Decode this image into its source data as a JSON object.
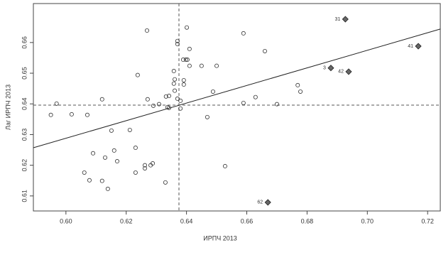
{
  "chart_data": {
    "type": "scatter",
    "x_label": "ИРПЧ 2013",
    "y_label": "Лаг ИРПЧ 2013",
    "xlim": [
      0.5892,
      0.7242
    ],
    "ylim": [
      0.6051,
      0.6727
    ],
    "xticks": [
      {
        "value": 0.6,
        "label": "0.60"
      },
      {
        "value": 0.62,
        "label": "0.62"
      },
      {
        "value": 0.64,
        "label": "0.64"
      },
      {
        "value": 0.66,
        "label": "0.66"
      },
      {
        "value": 0.68,
        "label": "0.68"
      },
      {
        "value": 0.7,
        "label": "0.70"
      },
      {
        "value": 0.72,
        "label": "0.72"
      }
    ],
    "yticks": [
      0.61,
      0.62,
      0.63,
      0.64,
      0.65,
      0.66
    ],
    "x": [
      0.595,
      0.5969,
      0.6019,
      0.6071,
      0.609,
      0.612,
      0.6151,
      0.616,
      0.617,
      0.612,
      0.613,
      0.6139,
      0.6078,
      0.6061,
      0.6231,
      0.6231,
      0.6262,
      0.6262,
      0.6281,
      0.6288,
      0.633,
      0.6309,
      0.629,
      0.6271,
      0.6332,
      0.6342,
      0.6342,
      0.6337,
      0.637,
      0.638,
      0.638,
      0.6361,
      0.6361,
      0.6358,
      0.6358,
      0.637,
      0.637,
      0.6401,
      0.6398,
      0.6389,
      0.6403,
      0.6391,
      0.6391,
      0.641,
      0.641,
      0.645,
      0.65,
      0.6488,
      0.6469,
      0.6528,
      0.6589,
      0.6589,
      0.6629,
      0.666,
      0.67,
      0.6769,
      0.6778,
      0.6269,
      0.6238,
      0.6212
    ],
    "y": [
      0.6364,
      0.6401,
      0.6366,
      0.6364,
      0.6239,
      0.6415,
      0.6313,
      0.6248,
      0.6213,
      0.6149,
      0.6225,
      0.6123,
      0.6151,
      0.6176,
      0.6257,
      0.6176,
      0.62,
      0.619,
      0.62,
      0.6206,
      0.6144,
      0.6399,
      0.6394,
      0.6415,
      0.6424,
      0.6426,
      0.6387,
      0.6389,
      0.6417,
      0.641,
      0.6385,
      0.6443,
      0.648,
      0.6466,
      0.6507,
      0.6605,
      0.6595,
      0.6649,
      0.6544,
      0.6544,
      0.6544,
      0.6477,
      0.6463,
      0.6524,
      0.6579,
      0.6524,
      0.6524,
      0.644,
      0.6357,
      0.6197,
      0.663,
      0.6403,
      0.6422,
      0.6572,
      0.6399,
      0.6461,
      0.644,
      0.6639,
      0.6494,
      0.6315
    ],
    "highlighted": {
      "color": "#666666",
      "labels": [
        "31",
        "41",
        "3",
        "42",
        "62"
      ],
      "x": [
        0.6927,
        0.7169,
        0.6879,
        0.6938,
        0.667
      ],
      "y": [
        0.6676,
        0.6588,
        0.6517,
        0.6505,
        0.6079
      ]
    },
    "x_mean": 0.6375,
    "y_mean": 0.6396,
    "regression_line": {
      "x": [
        0.5892,
        0.7242
      ],
      "y": [
        0.6257,
        0.6644
      ]
    }
  }
}
